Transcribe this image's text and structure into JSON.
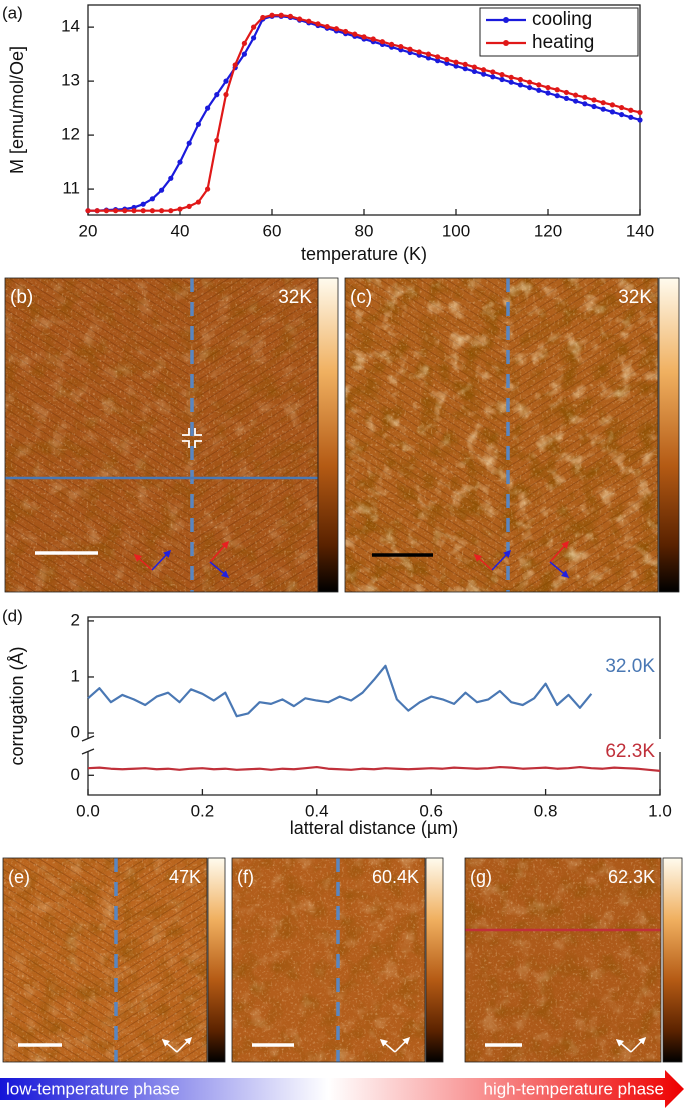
{
  "chart_data": [
    {
      "type": "line",
      "panel_label": "(a)",
      "x_label": "temperature (K)",
      "y_label": "M [emu/mol/Oe]",
      "x": [
        20,
        22,
        24,
        26,
        28,
        30,
        32,
        34,
        36,
        38,
        40,
        42,
        44,
        46,
        48,
        50,
        52,
        54,
        56,
        58,
        60,
        62,
        64,
        66,
        68,
        70,
        72,
        74,
        76,
        78,
        80,
        82,
        84,
        86,
        88,
        90,
        92,
        94,
        96,
        98,
        100,
        102,
        104,
        106,
        108,
        110,
        112,
        114,
        116,
        118,
        120,
        122,
        124,
        126,
        128,
        130,
        132,
        134,
        136,
        138,
        140
      ],
      "xlim": [
        20,
        140
      ],
      "xticks": [
        20,
        40,
        60,
        80,
        100,
        120,
        140
      ],
      "ylim": [
        10.52,
        14.41
      ],
      "yticks": [
        11,
        12,
        13,
        14
      ],
      "markers": true,
      "legend": "upper right",
      "series": [
        {
          "name": "cooling",
          "color": "#1a1adc",
          "values": [
            10.6,
            10.6,
            10.61,
            10.62,
            10.63,
            10.66,
            10.72,
            10.82,
            10.98,
            11.2,
            11.5,
            11.85,
            12.2,
            12.5,
            12.75,
            13.0,
            13.25,
            13.5,
            13.8,
            14.15,
            14.2,
            14.2,
            14.18,
            14.13,
            14.08,
            14.03,
            13.98,
            13.93,
            13.88,
            13.83,
            13.78,
            13.73,
            13.68,
            13.63,
            13.58,
            13.53,
            13.48,
            13.43,
            13.38,
            13.33,
            13.28,
            13.23,
            13.18,
            13.13,
            13.08,
            13.03,
            12.98,
            12.93,
            12.88,
            12.83,
            12.78,
            12.73,
            12.68,
            12.63,
            12.58,
            12.53,
            12.48,
            12.43,
            12.38,
            12.33,
            12.28
          ]
        },
        {
          "name": "heating",
          "color": "#e01818",
          "values": [
            10.6,
            10.6,
            10.6,
            10.6,
            10.6,
            10.6,
            10.6,
            10.6,
            10.6,
            10.6,
            10.63,
            10.68,
            10.76,
            11.0,
            11.9,
            12.75,
            13.3,
            13.7,
            14.0,
            14.18,
            14.22,
            14.22,
            14.2,
            14.15,
            14.11,
            14.06,
            14.01,
            13.97,
            13.92,
            13.87,
            13.82,
            13.78,
            13.73,
            13.68,
            13.64,
            13.59,
            13.54,
            13.5,
            13.45,
            13.4,
            13.35,
            13.31,
            13.26,
            13.21,
            13.17,
            13.12,
            13.07,
            13.03,
            12.98,
            12.93,
            12.88,
            12.84,
            12.79,
            12.74,
            12.7,
            12.65,
            12.6,
            12.56,
            12.51,
            12.46,
            12.42
          ]
        }
      ]
    },
    {
      "type": "line",
      "panel_label": "(d)",
      "x_label": "latteral distance (µm)",
      "y_label": "corrugation (Å)",
      "x": [
        0,
        0.02,
        0.04,
        0.06,
        0.08,
        0.1,
        0.12,
        0.14,
        0.16,
        0.18,
        0.2,
        0.22,
        0.24,
        0.26,
        0.28,
        0.3,
        0.32,
        0.34,
        0.36,
        0.38,
        0.4,
        0.42,
        0.44,
        0.46,
        0.48,
        0.5,
        0.52,
        0.54,
        0.56,
        0.58,
        0.6,
        0.62,
        0.64,
        0.66,
        0.68,
        0.7,
        0.72,
        0.74,
        0.76,
        0.78,
        0.8,
        0.82,
        0.84,
        0.86,
        0.88,
        0.9,
        0.92,
        0.94,
        0.96,
        0.98,
        1
      ],
      "xlim": [
        0,
        1
      ],
      "xticks": [
        {
          "value": 0,
          "label": "0.0"
        },
        0.2,
        0.4,
        0.6,
        0.8,
        {
          "value": 1,
          "label": "1.0"
        }
      ],
      "ylim": [
        -0.16,
        2.07
      ],
      "yticks": [
        0,
        1,
        2
      ],
      "y2lim": [
        -0.36,
        0.48
      ],
      "y2ticks": [
        0
      ],
      "broken_axis": true,
      "series": [
        {
          "name": "32.0K",
          "color": "#4a78b4",
          "values": [
            0.62,
            0.8,
            0.55,
            0.68,
            0.6,
            0.5,
            0.65,
            0.72,
            0.55,
            0.78,
            0.7,
            0.58,
            0.72,
            0.3,
            0.35,
            0.55,
            0.52,
            0.6,
            0.48,
            0.62,
            0.58,
            0.55,
            0.65,
            0.58,
            0.72,
            0.95,
            1.2,
            0.6,
            0.4,
            0.55,
            0.65,
            0.6,
            0.52,
            0.72,
            0.55,
            0.6,
            0.75,
            0.55,
            0.5,
            0.62,
            0.88,
            0.5,
            0.68,
            0.45,
            0.7,
            null,
            null,
            null,
            null,
            null,
            null
          ]
        },
        {
          "name": "62.3K",
          "color": "#c0303a",
          "axis": "y2",
          "values": [
            0.13,
            0.14,
            0.12,
            0.11,
            0.12,
            0.13,
            0.11,
            0.12,
            0.1,
            0.12,
            0.13,
            0.11,
            0.12,
            0.1,
            0.11,
            0.12,
            0.1,
            0.12,
            0.11,
            0.13,
            0.15,
            0.12,
            0.11,
            0.1,
            0.12,
            0.11,
            0.13,
            0.12,
            0.11,
            0.12,
            0.13,
            0.12,
            0.14,
            0.13,
            0.12,
            0.13,
            0.15,
            0.14,
            0.12,
            0.13,
            0.14,
            0.12,
            0.13,
            0.15,
            0.13,
            0.12,
            0.14,
            0.13,
            0.12,
            0.1,
            0.08
          ]
        }
      ]
    }
  ],
  "panels": [
    {
      "label": "(b)",
      "temperature": "32K"
    },
    {
      "label": "(c)",
      "temperature": "32K"
    },
    {
      "label": "(e)",
      "temperature": "47K"
    },
    {
      "label": "(f)",
      "temperature": "60.4K"
    },
    {
      "label": "(g)",
      "temperature": "62.3K"
    }
  ],
  "footer": {
    "left": "low-temperature phase",
    "right": "high-temperature phase"
  }
}
